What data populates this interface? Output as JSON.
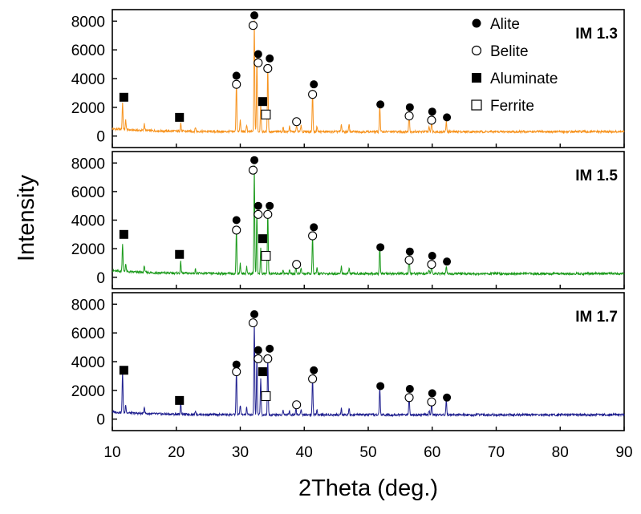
{
  "chart_data": {
    "type": "line",
    "xlabel": "2Theta (deg.)",
    "ylabel": "Intensity",
    "xlim": [
      10,
      90
    ],
    "xticks": [
      10,
      20,
      30,
      40,
      50,
      60,
      70,
      80,
      90
    ],
    "ylim": [
      -800,
      8800
    ],
    "yticks": [
      0,
      2000,
      4000,
      6000,
      8000
    ],
    "grid": false,
    "legend": {
      "placement": "top-right of top panel",
      "entries": [
        {
          "label": "Alite",
          "marker": "filled-circle"
        },
        {
          "label": "Belite",
          "marker": "open-circle"
        },
        {
          "label": "Aluminate",
          "marker": "filled-square"
        },
        {
          "label": "Ferrite",
          "marker": "open-square"
        }
      ]
    },
    "series": [
      {
        "name": "IM 1.3",
        "color": "#f7931e",
        "baseline": 300,
        "peaks": [
          [
            11.6,
            1900
          ],
          [
            12.1,
            700
          ],
          [
            15.0,
            500
          ],
          [
            20.7,
            600
          ],
          [
            23.0,
            300
          ],
          [
            29.4,
            3600
          ],
          [
            30.0,
            800
          ],
          [
            31.0,
            500
          ],
          [
            32.2,
            7800
          ],
          [
            32.6,
            5200
          ],
          [
            33.2,
            2000
          ],
          [
            34.3,
            4700
          ],
          [
            36.7,
            300
          ],
          [
            37.7,
            400
          ],
          [
            38.8,
            450
          ],
          [
            39.5,
            500
          ],
          [
            41.3,
            2900
          ],
          [
            42.0,
            400
          ],
          [
            45.8,
            500
          ],
          [
            47.0,
            500
          ],
          [
            51.8,
            1900
          ],
          [
            56.4,
            1500
          ],
          [
            59.5,
            300
          ],
          [
            59.9,
            800
          ],
          [
            62.2,
            700
          ]
        ],
        "markers": {
          "alite": [
            [
              32.2,
              8400
            ],
            [
              32.8,
              5700
            ],
            [
              29.4,
              4200
            ],
            [
              34.6,
              5400
            ],
            [
              41.5,
              3600
            ],
            [
              51.9,
              2200
            ],
            [
              56.5,
              2000
            ],
            [
              60.0,
              1700
            ],
            [
              62.3,
              1300
            ]
          ],
          "belite": [
            [
              32.0,
              7700
            ],
            [
              32.8,
              5100
            ],
            [
              29.4,
              3600
            ],
            [
              34.3,
              4700
            ],
            [
              41.3,
              2900
            ],
            [
              38.8,
              1000
            ],
            [
              56.4,
              1400
            ],
            [
              59.9,
              1100
            ]
          ],
          "aluminate": [
            [
              11.8,
              2700
            ],
            [
              20.5,
              1300
            ],
            [
              33.5,
              2400
            ]
          ],
          "ferrite": [
            [
              34.0,
              1500
            ]
          ]
        }
      },
      {
        "name": "IM 1.5",
        "color": "#1a9a1a",
        "baseline": 250,
        "peaks": [
          [
            11.6,
            2000
          ],
          [
            12.1,
            600
          ],
          [
            15.0,
            500
          ],
          [
            20.7,
            800
          ],
          [
            23.0,
            300
          ],
          [
            29.4,
            3200
          ],
          [
            30.0,
            700
          ],
          [
            31.0,
            500
          ],
          [
            32.2,
            7500
          ],
          [
            32.6,
            4500
          ],
          [
            33.2,
            1800
          ],
          [
            34.3,
            4500
          ],
          [
            36.7,
            300
          ],
          [
            37.7,
            300
          ],
          [
            38.7,
            500
          ],
          [
            39.5,
            400
          ],
          [
            41.3,
            2700
          ],
          [
            42.0,
            400
          ],
          [
            45.8,
            500
          ],
          [
            47.0,
            400
          ],
          [
            51.8,
            2000
          ],
          [
            56.4,
            1400
          ],
          [
            59.5,
            300
          ],
          [
            59.9,
            800
          ],
          [
            62.2,
            500
          ]
        ],
        "markers": {
          "alite": [
            [
              32.2,
              8200
            ],
            [
              32.8,
              5000
            ],
            [
              29.4,
              4000
            ],
            [
              34.6,
              5000
            ],
            [
              41.5,
              3500
            ],
            [
              51.9,
              2100
            ],
            [
              56.5,
              1800
            ],
            [
              60.0,
              1500
            ],
            [
              62.3,
              1100
            ]
          ],
          "belite": [
            [
              32.0,
              7500
            ],
            [
              32.8,
              4400
            ],
            [
              29.4,
              3300
            ],
            [
              34.3,
              4400
            ],
            [
              41.3,
              2900
            ],
            [
              38.8,
              900
            ],
            [
              56.4,
              1200
            ],
            [
              59.9,
              900
            ]
          ],
          "aluminate": [
            [
              11.8,
              3000
            ],
            [
              20.5,
              1600
            ],
            [
              33.5,
              2700
            ]
          ],
          "ferrite": [
            [
              34.0,
              1500
            ]
          ]
        }
      },
      {
        "name": "IM 1.7",
        "color": "#1f1f8f",
        "baseline": 300,
        "peaks": [
          [
            11.6,
            2900
          ],
          [
            12.1,
            600
          ],
          [
            15.0,
            500
          ],
          [
            20.7,
            900
          ],
          [
            23.0,
            300
          ],
          [
            29.4,
            3200
          ],
          [
            30.0,
            700
          ],
          [
            31.0,
            500
          ],
          [
            32.2,
            6600
          ],
          [
            32.6,
            4100
          ],
          [
            33.2,
            2600
          ],
          [
            34.3,
            4100
          ],
          [
            36.7,
            300
          ],
          [
            37.7,
            300
          ],
          [
            38.7,
            500
          ],
          [
            39.5,
            400
          ],
          [
            41.3,
            2700
          ],
          [
            42.0,
            400
          ],
          [
            45.8,
            500
          ],
          [
            47.0,
            500
          ],
          [
            51.8,
            2000
          ],
          [
            56.4,
            1400
          ],
          [
            59.5,
            300
          ],
          [
            59.9,
            800
          ],
          [
            62.2,
            1100
          ]
        ],
        "markers": {
          "alite": [
            [
              32.2,
              7300
            ],
            [
              32.8,
              4800
            ],
            [
              29.4,
              3800
            ],
            [
              34.6,
              4900
            ],
            [
              41.5,
              3400
            ],
            [
              51.9,
              2300
            ],
            [
              56.5,
              2100
            ],
            [
              60.0,
              1800
            ],
            [
              62.3,
              1500
            ]
          ],
          "belite": [
            [
              32.0,
              6700
            ],
            [
              32.8,
              4200
            ],
            [
              29.4,
              3300
            ],
            [
              34.3,
              4200
            ],
            [
              41.3,
              2800
            ],
            [
              38.8,
              1000
            ],
            [
              56.4,
              1500
            ],
            [
              59.9,
              1200
            ]
          ],
          "aluminate": [
            [
              11.8,
              3400
            ],
            [
              20.5,
              1300
            ],
            [
              33.5,
              3300
            ]
          ],
          "ferrite": [
            [
              34.0,
              1600
            ]
          ]
        }
      }
    ]
  }
}
